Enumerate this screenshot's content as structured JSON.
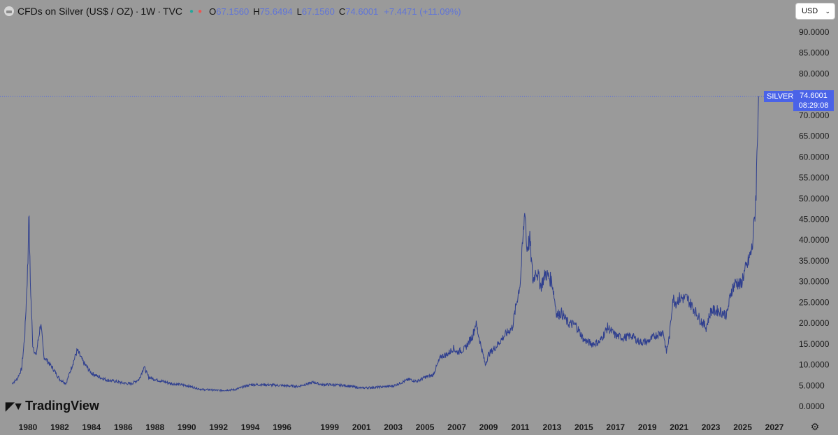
{
  "header": {
    "title": "CFDs on Silver (US$ / OZ)",
    "interval": "1W",
    "source": "TVC",
    "open_label": "O",
    "open": "67.1560",
    "high_label": "H",
    "high": "75.6494",
    "low_label": "L",
    "low": "67.1560",
    "close_label": "C",
    "close": "74.6001",
    "change": "+7.4471 (+11.09%)"
  },
  "currency": {
    "label": "USD"
  },
  "price_tag": {
    "symbol": "SILVER",
    "price": "74.6001",
    "countdown": "08:29:08"
  },
  "brand": {
    "name": "TradingView"
  },
  "colors": {
    "background": "#9a9a9a",
    "line": "#2f3f8f",
    "accent": "#4a63e8",
    "up": "#26a69a",
    "down": "#ef5350"
  },
  "chart_data": {
    "type": "line",
    "title": "CFDs on Silver (US$ / OZ)",
    "xlabel": "",
    "ylabel": "",
    "ylim": [
      0,
      90
    ],
    "xlim": [
      1979.0,
      2027.5
    ],
    "grid": false,
    "y_ticks": [
      "90.0000",
      "85.0000",
      "80.0000",
      "75.0000",
      "70.0000",
      "65.0000",
      "60.0000",
      "55.0000",
      "50.0000",
      "45.0000",
      "40.0000",
      "35.0000",
      "30.0000",
      "25.0000",
      "20.0000",
      "15.0000",
      "10.0000",
      "5.0000",
      "0.0000"
    ],
    "x_ticks": [
      "1980",
      "1982",
      "1984",
      "1986",
      "1988",
      "1990",
      "1992",
      "1994",
      "1996",
      "1999",
      "2001",
      "2003",
      "2005",
      "2007",
      "2009",
      "2011",
      "2013",
      "2015",
      "2017",
      "2019",
      "2021",
      "2023",
      "2025",
      "2027"
    ],
    "series": [
      {
        "name": "SILVER",
        "x": [
          1979.0,
          1979.3,
          1979.6,
          1979.8,
          1980.0,
          1980.05,
          1980.15,
          1980.3,
          1980.5,
          1980.8,
          1981.0,
          1981.5,
          1982.0,
          1982.4,
          1982.8,
          1983.1,
          1983.5,
          1984.0,
          1984.5,
          1985.0,
          1985.5,
          1986.0,
          1986.5,
          1987.0,
          1987.3,
          1987.6,
          1988.0,
          1989.0,
          1990.0,
          1991.0,
          1991.5,
          1992.0,
          1993.0,
          1994.0,
          1995.0,
          1996.0,
          1997.0,
          1998.0,
          1998.5,
          1999.0,
          2000.0,
          2001.0,
          2002.0,
          2003.0,
          2004.0,
          2004.5,
          2005.0,
          2005.5,
          2006.0,
          2006.4,
          2006.8,
          2007.0,
          2007.5,
          2008.0,
          2008.2,
          2008.5,
          2008.8,
          2009.0,
          2009.5,
          2010.0,
          2010.5,
          2011.0,
          2011.3,
          2011.4,
          2011.6,
          2011.8,
          2012.0,
          2012.3,
          2012.6,
          2013.0,
          2013.3,
          2013.6,
          2014.0,
          2014.5,
          2015.0,
          2015.5,
          2016.0,
          2016.5,
          2017.0,
          2017.5,
          2018.0,
          2018.5,
          2019.0,
          2019.5,
          2020.0,
          2020.2,
          2020.4,
          2020.6,
          2020.8,
          2021.0,
          2021.5,
          2022.0,
          2022.3,
          2022.7,
          2023.0,
          2023.5,
          2024.0,
          2024.3,
          2024.6,
          2024.9,
          2025.0,
          2025.3,
          2025.6,
          2025.75,
          2025.85,
          2025.95,
          2026.0
        ],
        "values": [
          5.5,
          6.5,
          9.0,
          17.0,
          35.0,
          48.0,
          30.0,
          15.0,
          12.0,
          20.0,
          12.0,
          9.5,
          6.5,
          5.5,
          10.0,
          13.5,
          10.5,
          8.0,
          7.0,
          6.3,
          6.0,
          5.6,
          5.4,
          6.5,
          9.5,
          7.0,
          6.5,
          5.5,
          5.0,
          4.0,
          4.0,
          3.8,
          4.0,
          5.2,
          5.2,
          5.0,
          4.8,
          5.8,
          5.2,
          5.2,
          5.0,
          4.4,
          4.6,
          4.9,
          6.5,
          6.0,
          7.0,
          7.5,
          12.0,
          12.5,
          14.0,
          13.0,
          13.8,
          17.0,
          20.0,
          15.0,
          10.0,
          12.5,
          14.5,
          17.0,
          19.0,
          30.0,
          48.0,
          38.0,
          40.0,
          30.0,
          33.0,
          29.0,
          32.0,
          30.0,
          22.0,
          22.5,
          20.0,
          19.5,
          16.0,
          15.0,
          15.5,
          19.0,
          17.0,
          16.5,
          17.0,
          15.5,
          15.5,
          17.0,
          18.0,
          13.0,
          17.0,
          26.0,
          25.0,
          26.0,
          26.0,
          23.0,
          21.0,
          19.0,
          23.0,
          23.0,
          22.0,
          28.0,
          30.0,
          29.0,
          31.0,
          34.0,
          38.0,
          45.0,
          52.0,
          68.0,
          74.6
        ]
      }
    ],
    "last_price": 74.6001
  }
}
